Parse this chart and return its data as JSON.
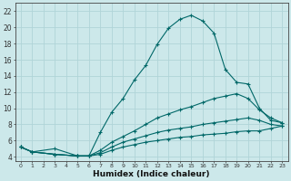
{
  "xlabel": "Humidex (Indice chaleur)",
  "xlim": [
    -0.5,
    23.5
  ],
  "ylim": [
    3.5,
    23.0
  ],
  "xticks": [
    0,
    1,
    2,
    3,
    4,
    5,
    6,
    7,
    8,
    9,
    10,
    11,
    12,
    13,
    14,
    15,
    16,
    17,
    18,
    19,
    20,
    21,
    22,
    23
  ],
  "yticks": [
    4,
    6,
    8,
    10,
    12,
    14,
    16,
    18,
    20,
    22
  ],
  "bg_color": "#cce8ea",
  "line_color": "#006868",
  "grid_color": "#b0d4d8",
  "lines": [
    {
      "x": [
        0,
        1,
        3,
        5,
        6,
        7,
        8,
        9,
        10,
        11,
        12,
        13,
        14,
        15,
        16,
        17,
        18,
        19,
        20,
        21,
        22,
        23
      ],
      "y": [
        5.2,
        4.6,
        5.0,
        4.1,
        4.1,
        7.0,
        9.5,
        11.2,
        13.5,
        15.3,
        17.9,
        19.9,
        21.0,
        21.5,
        20.8,
        19.3,
        14.8,
        13.2,
        13.0,
        10.0,
        8.5,
        8.2
      ]
    },
    {
      "x": [
        0,
        1,
        3,
        5,
        6,
        7,
        8,
        9,
        10,
        11,
        12,
        13,
        14,
        15,
        16,
        17,
        18,
        19,
        20,
        21,
        22,
        23
      ],
      "y": [
        5.2,
        4.6,
        4.3,
        4.1,
        4.1,
        4.8,
        5.8,
        6.5,
        7.2,
        8.0,
        8.8,
        9.3,
        9.8,
        10.2,
        10.7,
        11.2,
        11.5,
        11.8,
        11.2,
        9.8,
        8.8,
        8.2
      ]
    },
    {
      "x": [
        0,
        1,
        3,
        5,
        6,
        7,
        8,
        9,
        10,
        11,
        12,
        13,
        14,
        15,
        16,
        17,
        18,
        19,
        20,
        21,
        22,
        23
      ],
      "y": [
        5.2,
        4.6,
        4.3,
        4.1,
        4.1,
        4.5,
        5.2,
        5.8,
        6.2,
        6.6,
        7.0,
        7.3,
        7.5,
        7.7,
        8.0,
        8.2,
        8.4,
        8.6,
        8.8,
        8.5,
        8.0,
        7.8
      ]
    },
    {
      "x": [
        0,
        1,
        3,
        5,
        6,
        7,
        8,
        9,
        10,
        11,
        12,
        13,
        14,
        15,
        16,
        17,
        18,
        19,
        20,
        21,
        22,
        23
      ],
      "y": [
        5.2,
        4.6,
        4.3,
        4.1,
        4.1,
        4.3,
        4.8,
        5.2,
        5.5,
        5.8,
        6.0,
        6.2,
        6.4,
        6.5,
        6.7,
        6.8,
        6.9,
        7.1,
        7.2,
        7.2,
        7.5,
        7.8
      ]
    }
  ]
}
